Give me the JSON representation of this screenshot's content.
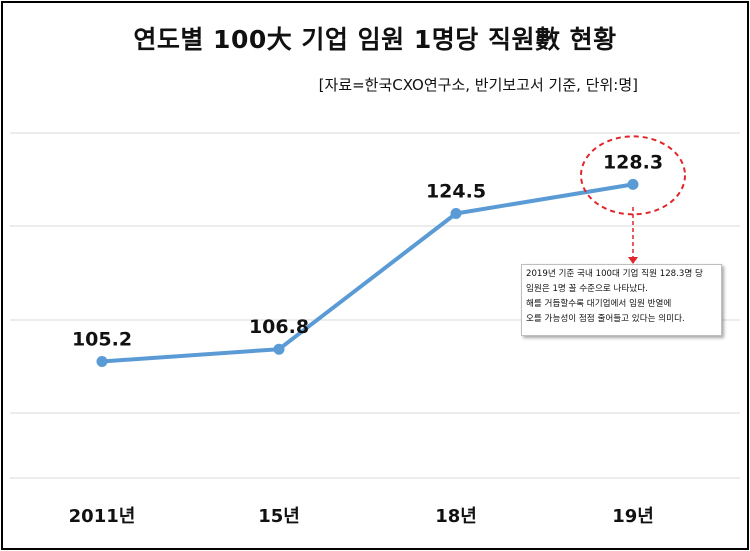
{
  "title": "연도별 100大 기업 임원 1명당 직원數 현황",
  "source": "[자료=한국CXO연구소, 반기보고서 기준, 단위:명]",
  "annotation": {
    "lines": [
      "2019년 기준 국내 100대 기업 직원 128.3명 당",
      "임원은 1명 꼴 수준으로 나타났다.",
      "해를 거듭할수록 대기업에서 임원 반열에",
      "오를 가능성이 점점 줄어들고 있다는 의미다."
    ],
    "highlight_color": "#e0262b"
  },
  "chart_data": {
    "type": "line",
    "title": "연도별 100大 기업 임원 1명당 직원數 현황",
    "categories": [
      "2011년",
      "15년",
      "18년",
      "19년"
    ],
    "values": [
      105.2,
      106.8,
      124.5,
      128.3
    ],
    "data_labels": [
      "105.2",
      "106.8",
      "124.5",
      "128.3"
    ],
    "ylim": [
      90,
      135
    ],
    "grid": true,
    "line_color": "#5b9bd5",
    "highlight_index": 3
  }
}
